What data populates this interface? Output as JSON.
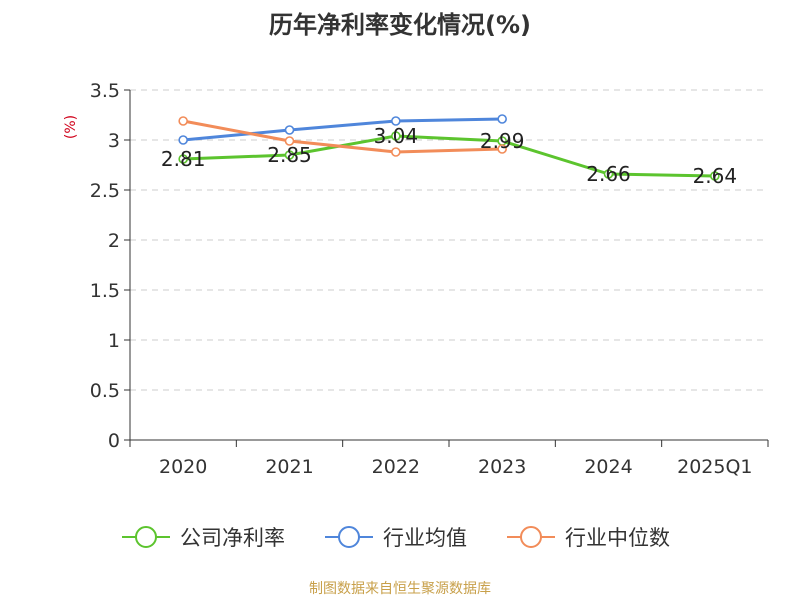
{
  "chart_data": {
    "type": "line",
    "title": "历年净利率变化情况(%)",
    "ylabel": "(%)",
    "categories": [
      "2020",
      "2021",
      "2022",
      "2023",
      "2024",
      "2025Q1"
    ],
    "ylim": [
      0,
      3.5
    ],
    "y_ticks": [
      "0",
      "0.5",
      "1",
      "1.5",
      "2",
      "2.5",
      "3",
      "3.5"
    ],
    "grid": "horizontal-dashed",
    "legend_position": "bottom-center",
    "series": [
      {
        "name": "公司净利率",
        "color": "#5cc42e",
        "values": [
          2.81,
          2.85,
          3.04,
          2.99,
          2.66,
          2.64
        ],
        "labels": [
          "2.81",
          "2.85",
          "3.04",
          "2.99",
          "2.66",
          "2.64"
        ]
      },
      {
        "name": "行业均值",
        "color": "#4f86db",
        "values": [
          3.0,
          3.1,
          3.19,
          3.21,
          null,
          null
        ]
      },
      {
        "name": "行业中位数",
        "color": "#f28c59",
        "values": [
          3.19,
          2.99,
          2.88,
          2.91,
          null,
          null
        ]
      }
    ]
  },
  "source_note": "制图数据来自恒生聚源数据库"
}
